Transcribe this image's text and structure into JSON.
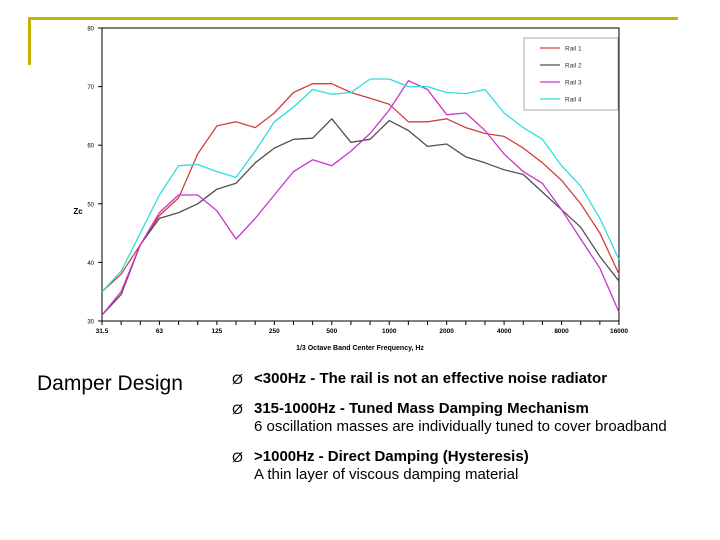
{
  "chart_data": {
    "type": "line",
    "xlabel": "1/3 Octave Band Center Frequency, Hz",
    "ylabel": "Zc",
    "ylim": [
      30,
      80
    ],
    "yticks": [
      30,
      40,
      50,
      60,
      70,
      80
    ],
    "x": [
      "31.5",
      "40",
      "50",
      "63",
      "80",
      "100",
      "125",
      "160",
      "200",
      "250",
      "315",
      "400",
      "500",
      "630",
      "800",
      "1000",
      "1250",
      "1600",
      "2000",
      "2500",
      "3150",
      "4000",
      "5000",
      "6300",
      "8000",
      "10000",
      "12500",
      "16000"
    ],
    "xtick_labels": [
      "31.5",
      "63",
      "125",
      "250",
      "500",
      "1000",
      "2000",
      "4000",
      "8000",
      "16000"
    ],
    "legend_position": "top-right",
    "grid": false,
    "series": [
      {
        "name": "Rail 1",
        "color": "#d04040",
        "values": [
          35,
          38,
          43,
          48,
          51,
          58.5,
          63.3,
          64,
          63,
          65.5,
          69,
          70.5,
          70.5,
          69,
          68,
          67,
          64,
          64,
          64.5,
          63,
          62,
          61.5,
          59.5,
          57,
          54,
          50,
          45,
          38
        ]
      },
      {
        "name": "Rail 2",
        "color": "#505050",
        "values": [
          31,
          34.5,
          43,
          47.5,
          48.5,
          50,
          52.5,
          53.5,
          57,
          59.5,
          61,
          61.2,
          64.5,
          60.5,
          61,
          64.2,
          62.5,
          59.8,
          60.2,
          58,
          57,
          55.8,
          55,
          52,
          49,
          46,
          41,
          36.8
        ]
      },
      {
        "name": "Rail 3",
        "color": "#cc33cc",
        "values": [
          31,
          35,
          43,
          48.5,
          51.5,
          51.5,
          48.8,
          44,
          47.5,
          51.5,
          55.5,
          57.5,
          56.5,
          59,
          62,
          66,
          71,
          69.5,
          65.2,
          65.5,
          62.5,
          58.5,
          55.5,
          53.5,
          49,
          44,
          39,
          31.5
        ]
      },
      {
        "name": "Rail 4",
        "color": "#30dddd",
        "values": [
          35,
          38.5,
          45,
          51.5,
          56.5,
          56.7,
          55.5,
          54.5,
          59,
          64,
          66.5,
          69.5,
          68.7,
          69,
          71.3,
          71.3,
          70,
          70,
          69,
          68.8,
          69.5,
          65.5,
          63,
          61,
          56.5,
          53,
          47.5,
          40.5
        ]
      }
    ]
  },
  "section_title": "Damper Design",
  "bullets": [
    {
      "head": "<300Hz  - The rail is not an effective noise radiator",
      "sub": ""
    },
    {
      "head": "315-1000Hz  - Tuned Mass Damping Mechanism",
      "sub": "6 oscillation masses are individually tuned to cover broadband"
    },
    {
      "head": ">1000Hz  - Direct Damping (Hysteresis)",
      "sub": "A thin layer of viscous damping material"
    }
  ],
  "bullet_marker": "Ø"
}
